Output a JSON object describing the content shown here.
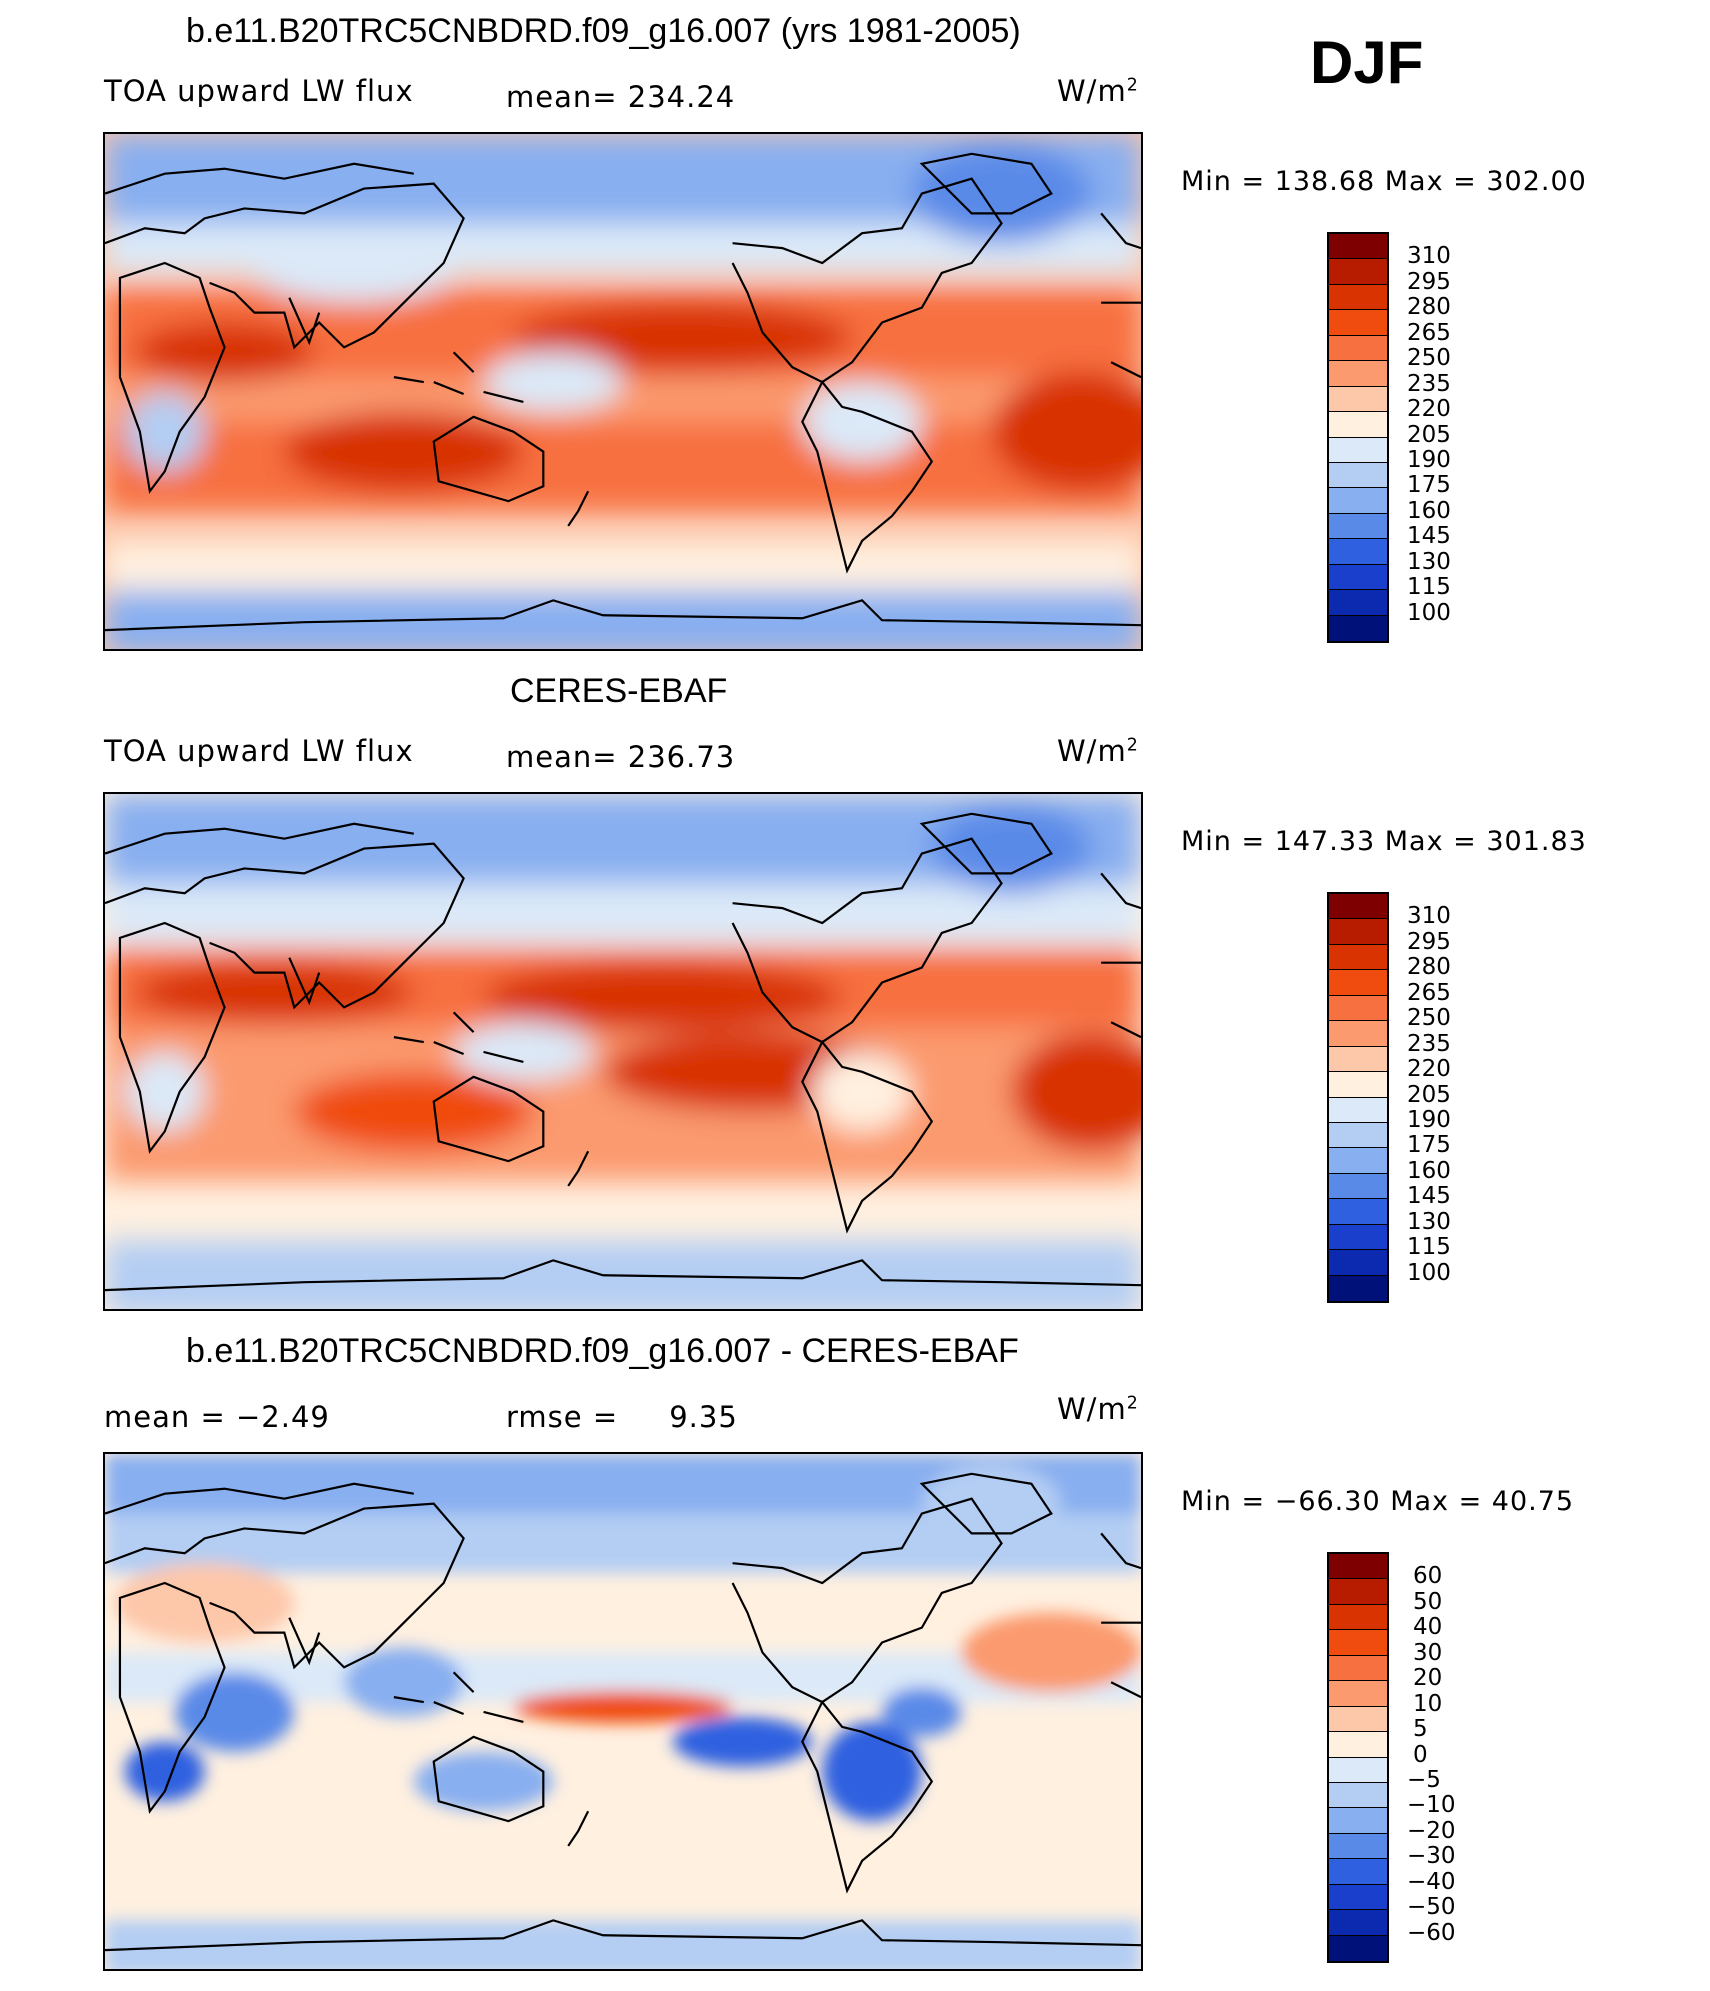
{
  "season": "DJF",
  "panels": [
    {
      "title": "b.e11.B20TRC5CNBDRD.f09_g16.007 (yrs 1981-2005)",
      "left_label": "TOA upward LW flux",
      "stat_label": "mean=",
      "stat_value": "234.24",
      "units_main": "W/m",
      "units_sup": "2",
      "range_text": "Min  =  138.68  Max  =  302.00"
    },
    {
      "title": "CERES-EBAF",
      "left_label": "TOA upward LW flux",
      "stat_label": "mean=",
      "stat_value": "236.73",
      "units_main": "W/m",
      "units_sup": "2",
      "range_text": "Min  =  147.33  Max  =  301.83"
    },
    {
      "title": "b.e11.B20TRC5CNBDRD.f09_g16.007 - CERES-EBAF",
      "left_label": "mean =    −2.49",
      "stat_label": "rmse =",
      "stat_value": "9.35",
      "units_main": "W/m",
      "units_sup": "2",
      "range_text": "Min  =  −66.30  Max  =    40.75"
    }
  ],
  "chart_data": [
    {
      "type": "heatmap",
      "title": "b.e11.B20TRC5CNBDRD.f09_g16.007 (yrs 1981-2005)",
      "variable": "TOA upward LW flux",
      "units": "W/m2",
      "mean": 234.24,
      "min": 138.68,
      "max": 302.0,
      "colorbar_levels": [
        "310",
        "295",
        "280",
        "265",
        "250",
        "235",
        "220",
        "205",
        "190",
        "175",
        "160",
        "145",
        "130",
        "115",
        "100"
      ],
      "colorbar_colors": [
        "#7f0000",
        "#b71c00",
        "#d83300",
        "#f04c10",
        "#f77040",
        "#fb9a6e",
        "#fdc7aa",
        "#fff0e0",
        "#dbe9f8",
        "#b3cdf3",
        "#88aff0",
        "#5a8ae8",
        "#2f60e0",
        "#1a3fcc",
        "#0b2aaf",
        "#00127a"
      ],
      "regions": {
        "tropical_highs": "red 265-295",
        "polar_regions": "blue 145-190",
        "midlatitudes": "light 205-235"
      }
    },
    {
      "type": "heatmap",
      "title": "CERES-EBAF",
      "variable": "TOA upward LW flux",
      "units": "W/m2",
      "mean": 236.73,
      "min": 147.33,
      "max": 301.83,
      "colorbar_levels": [
        "310",
        "295",
        "280",
        "265",
        "250",
        "235",
        "220",
        "205",
        "190",
        "175",
        "160",
        "145",
        "130",
        "115",
        "100"
      ],
      "colorbar_colors": [
        "#7f0000",
        "#b71c00",
        "#d83300",
        "#f04c10",
        "#f77040",
        "#fb9a6e",
        "#fdc7aa",
        "#fff0e0",
        "#dbe9f8",
        "#b3cdf3",
        "#88aff0",
        "#5a8ae8",
        "#2f60e0",
        "#1a3fcc",
        "#0b2aaf",
        "#00127a"
      ]
    },
    {
      "type": "heatmap",
      "title": "b.e11.B20TRC5CNBDRD.f09_g16.007 - CERES-EBAF",
      "variable": "difference",
      "units": "W/m2",
      "mean": -2.49,
      "rmse": 9.35,
      "min": -66.3,
      "max": 40.75,
      "colorbar_levels": [
        "60",
        "50",
        "40",
        "30",
        "20",
        "10",
        "5",
        "0",
        "−5",
        "−10",
        "−20",
        "−30",
        "−40",
        "−50",
        "−60"
      ],
      "colorbar_colors": [
        "#7f0000",
        "#b71c00",
        "#d83300",
        "#f04c10",
        "#f77040",
        "#fb9a6e",
        "#fdc7aa",
        "#fff0e0",
        "#dbe9f8",
        "#b3cdf3",
        "#88aff0",
        "#5a8ae8",
        "#2f60e0",
        "#1a3fcc",
        "#0b2aaf",
        "#00127a"
      ]
    }
  ]
}
